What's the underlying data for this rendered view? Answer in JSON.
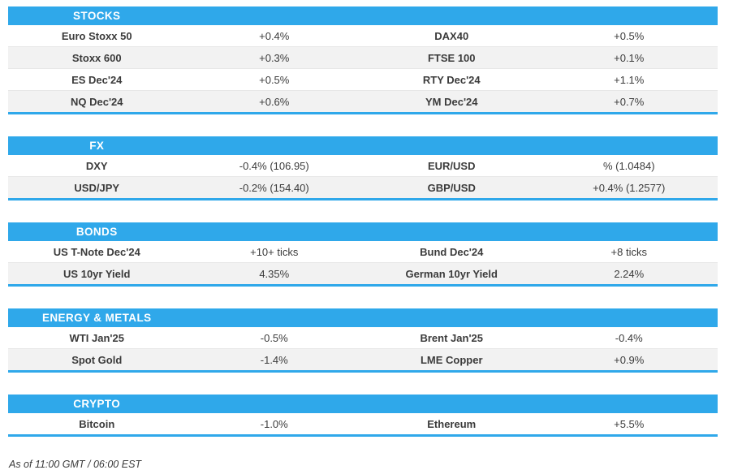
{
  "colors": {
    "accent_blue": "#2FA8EA",
    "row_alt_gray": "#F2F2F2",
    "text": "#3B3B3B"
  },
  "sections": [
    {
      "title": "STOCKS",
      "rows": [
        {
          "instrument_left": "Euro Stoxx 50",
          "value_left": "+0.4%",
          "instrument_right": "DAX40",
          "value_right": "+0.5%"
        },
        {
          "instrument_left": "Stoxx 600",
          "value_left": "+0.3%",
          "instrument_right": "FTSE 100",
          "value_right": "+0.1%"
        },
        {
          "instrument_left": "ES Dec'24",
          "value_left": "+0.5%",
          "instrument_right": "RTY Dec'24",
          "value_right": "+1.1%"
        },
        {
          "instrument_left": "NQ Dec'24",
          "value_left": "+0.6%",
          "instrument_right": "YM Dec'24",
          "value_right": "+0.7%"
        }
      ]
    },
    {
      "title": "FX",
      "rows": [
        {
          "instrument_left": "DXY",
          "value_left": "-0.4% (106.95)",
          "instrument_right": "EUR/USD",
          "value_right": "% (1.0484)"
        },
        {
          "instrument_left": "USD/JPY",
          "value_left": "-0.2% (154.40)",
          "instrument_right": "GBP/USD",
          "value_right": "+0.4% (1.2577)"
        }
      ]
    },
    {
      "title": "BONDS",
      "rows": [
        {
          "instrument_left": "US T-Note Dec'24",
          "value_left": "+10+ ticks",
          "instrument_right": "Bund Dec'24",
          "value_right": "+8 ticks"
        },
        {
          "instrument_left": "US 10yr Yield",
          "value_left": "4.35%",
          "instrument_right": "German 10yr Yield",
          "value_right": "2.24%"
        }
      ]
    },
    {
      "title": "ENERGY & METALS",
      "rows": [
        {
          "instrument_left": "WTI Jan'25",
          "value_left": "-0.5%",
          "instrument_right": "Brent Jan'25",
          "value_right": "-0.4%"
        },
        {
          "instrument_left": "Spot Gold",
          "value_left": "-1.4%",
          "instrument_right": "LME Copper",
          "value_right": "+0.9%"
        }
      ]
    },
    {
      "title": "CRYPTO",
      "rows": [
        {
          "instrument_left": "Bitcoin",
          "value_left": "-1.0%",
          "instrument_right": "Ethereum",
          "value_right": "+5.5%"
        }
      ]
    }
  ],
  "footer": {
    "text": "As of 11:00 GMT / 06:00 EST"
  }
}
